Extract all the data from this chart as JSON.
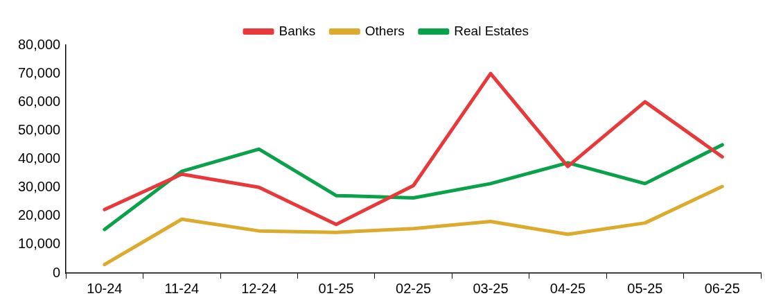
{
  "chart_data": {
    "type": "line",
    "categories": [
      "10-24",
      "11-24",
      "12-24",
      "01-25",
      "02-25",
      "03-25",
      "04-25",
      "05-25",
      "06-25"
    ],
    "series": [
      {
        "name": "Banks",
        "color": "#e8383a",
        "values": [
          22300,
          34700,
          30100,
          17100,
          30700,
          70000,
          37400,
          60100,
          40800
        ]
      },
      {
        "name": "Others",
        "color": "#dcaa2c",
        "values": [
          3000,
          18900,
          14800,
          14300,
          15600,
          18100,
          13600,
          17600,
          30400
        ]
      },
      {
        "name": "Real Estates",
        "color": "#0aa14b",
        "values": [
          15300,
          35700,
          43500,
          27200,
          26400,
          31400,
          38700,
          31400,
          45000
        ]
      }
    ],
    "ylim": [
      0,
      80000
    ],
    "yticks": [
      {
        "value": 0,
        "label": "0"
      },
      {
        "value": 10000,
        "label": "10,000"
      },
      {
        "value": 20000,
        "label": "20,000"
      },
      {
        "value": 30000,
        "label": "30,000"
      },
      {
        "value": 40000,
        "label": "40,000"
      },
      {
        "value": 50000,
        "label": "50,000"
      },
      {
        "value": 60000,
        "label": "60,000"
      },
      {
        "value": 70000,
        "label": "70,000"
      },
      {
        "value": 80000,
        "label": "80,000"
      }
    ],
    "grid": false,
    "legend": "top",
    "marker": "none",
    "line_style": "solid"
  }
}
